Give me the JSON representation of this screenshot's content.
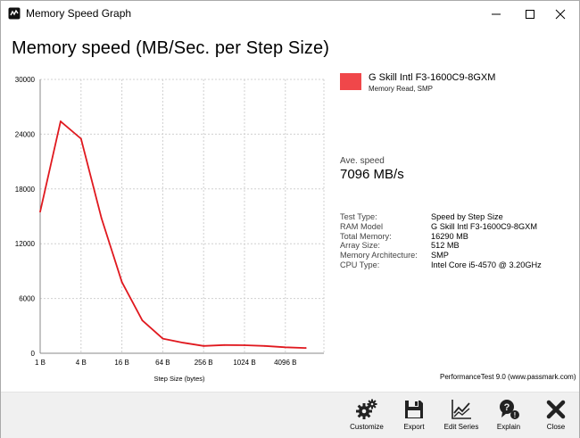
{
  "window": {
    "title": "Memory Speed Graph",
    "icon": "passmark-app-icon"
  },
  "header": {
    "title": "Memory speed (MB/Sec. per Step Size)"
  },
  "chart_data": {
    "type": "line",
    "title": "Memory speed (MB/Sec. per Step Size)",
    "xlabel": "Step Size (bytes)",
    "ylabel": "",
    "x_tick_labels": [
      "1 B",
      "4 B",
      "16 B",
      "64 B",
      "256 B",
      "1024 B",
      "4096 B"
    ],
    "y_tick_labels": [
      "30000",
      "24000",
      "18000",
      "12000",
      "6000",
      "0"
    ],
    "ylim": [
      0,
      30000
    ],
    "xlim_log2": [
      0,
      14
    ],
    "grid": true,
    "legend_position": "right",
    "series": [
      {
        "name": "G Skill Intl F3-1600C9-8GXM",
        "color": "#e0191f",
        "x_log2": [
          0,
          1,
          2,
          3,
          4,
          5,
          6,
          7,
          8,
          9,
          10,
          11,
          12,
          13
        ],
        "values": [
          15500,
          25400,
          23500,
          14800,
          7800,
          3600,
          1600,
          1150,
          800,
          900,
          880,
          800,
          650,
          580
        ]
      }
    ]
  },
  "legend": {
    "name": "G Skill Intl F3-1600C9-8GXM",
    "subtitle": "Memory Read, SMP",
    "color": "#f0474a"
  },
  "stats": {
    "ave_label": "Ave. speed",
    "ave_value": "7096 MB/s"
  },
  "info": [
    {
      "key": "Test Type:",
      "value": "Speed by Step Size"
    },
    {
      "key": "RAM Model",
      "value": "G Skill Intl F3-1600C9-8GXM"
    },
    {
      "key": "Total Memory:",
      "value": "16290 MB"
    },
    {
      "key": "Array Size:",
      "value": "512 MB"
    },
    {
      "key": "Memory Architecture:",
      "value": "SMP"
    },
    {
      "key": "CPU Type:",
      "value": "Intel Core i5-4570 @ 3.20GHz"
    }
  ],
  "footer": {
    "note": "PerformanceTest 9.0 (www.passmark.com)"
  },
  "toolbar": {
    "customize": "Customize",
    "export": "Export",
    "edit_series": "Edit Series",
    "explain": "Explain",
    "close": "Close"
  }
}
